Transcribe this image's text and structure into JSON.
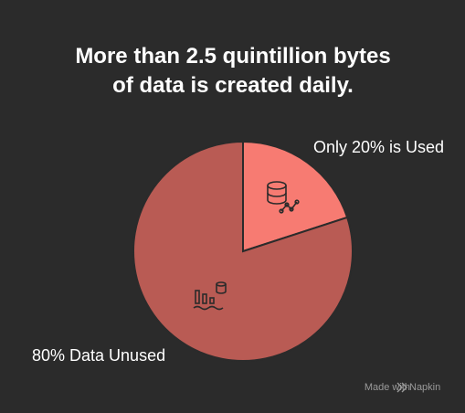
{
  "chart_data": {
    "type": "pie",
    "title": "More than 2.5 quintillion bytes of data is created daily.",
    "categories": [
      "Only 20% is Used",
      "80% Data Unused"
    ],
    "values": [
      20,
      80
    ],
    "colors": [
      "#f77b72",
      "#b95b54"
    ]
  },
  "footer": {
    "text": "Made with",
    "brand": "Napkin"
  }
}
